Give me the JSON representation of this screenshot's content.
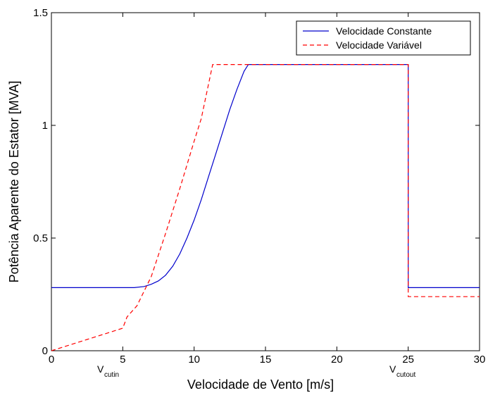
{
  "chart_data": {
    "type": "line",
    "title": "",
    "xlabel": "Velocidade de Vento [m/s]",
    "ylabel": "Potência Aparente do Estator [MVA]",
    "xlim": [
      0,
      30
    ],
    "ylim": [
      0,
      1.5
    ],
    "x_ticks": [
      0,
      5,
      10,
      15,
      20,
      25,
      30
    ],
    "y_ticks": [
      0,
      0.5,
      1,
      1.5
    ],
    "x_tick_labels": [
      "0",
      "5",
      "10",
      "15",
      "20",
      "25",
      "30"
    ],
    "y_tick_labels": [
      "0",
      "0.5",
      "1",
      "1.5"
    ],
    "grid": false,
    "legend_position": "top-right",
    "series": [
      {
        "name": "Velocidade Constante",
        "color": "#0000cc",
        "style": "solid",
        "points": [
          [
            0,
            0.28
          ],
          [
            5.8,
            0.28
          ],
          [
            6.5,
            0.285
          ],
          [
            7.0,
            0.295
          ],
          [
            7.5,
            0.31
          ],
          [
            8.0,
            0.335
          ],
          [
            8.5,
            0.375
          ],
          [
            9.0,
            0.43
          ],
          [
            9.5,
            0.5
          ],
          [
            10.0,
            0.58
          ],
          [
            10.5,
            0.67
          ],
          [
            11.0,
            0.77
          ],
          [
            11.5,
            0.87
          ],
          [
            12.0,
            0.97
          ],
          [
            12.5,
            1.07
          ],
          [
            13.0,
            1.16
          ],
          [
            13.5,
            1.24
          ],
          [
            13.8,
            1.27
          ],
          [
            25.0,
            1.27
          ],
          [
            25.0,
            0.28
          ],
          [
            30,
            0.28
          ]
        ]
      },
      {
        "name": "Velocidade Variável",
        "color": "#ff0000",
        "style": "dashed",
        "points": [
          [
            0,
            0
          ],
          [
            1,
            0.02
          ],
          [
            2,
            0.04
          ],
          [
            3,
            0.06
          ],
          [
            4,
            0.08
          ],
          [
            5,
            0.1
          ],
          [
            5.3,
            0.15
          ],
          [
            6,
            0.2
          ],
          [
            7,
            0.33
          ],
          [
            8,
            0.52
          ],
          [
            9,
            0.72
          ],
          [
            10,
            0.93
          ],
          [
            10.5,
            1.03
          ],
          [
            11.3,
            1.27
          ],
          [
            25.0,
            1.27
          ],
          [
            25.0,
            0.24
          ],
          [
            30,
            0.24
          ]
        ]
      }
    ],
    "annotations": [
      {
        "main": "V",
        "sub": "cutin",
        "x": 5
      },
      {
        "main": "V",
        "sub": "cutout",
        "x": 25
      }
    ]
  }
}
